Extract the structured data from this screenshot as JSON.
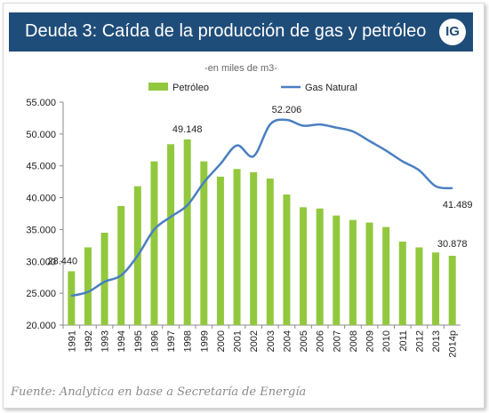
{
  "header": {
    "title": "Deuda 3: Caída de la producción de gas y petróleo",
    "logo": "IG"
  },
  "colors": {
    "header_bg": "#1f4d7a",
    "bars": "#92c83e",
    "line": "#4a7fc1"
  },
  "chart_data": {
    "type": "bar",
    "subtitle": "-en miles de m3-",
    "legend": [
      "Petróleo",
      "Gas Natural"
    ],
    "legend_position": "top",
    "categories": [
      "1991",
      "1992",
      "1993",
      "1994",
      "1995",
      "1996",
      "1997",
      "1998",
      "1999",
      "2000",
      "2001",
      "2002",
      "2003",
      "2004",
      "2005",
      "2006",
      "2007",
      "2008",
      "2009",
      "2010",
      "2011",
      "2012",
      "2013",
      "2014p"
    ],
    "y_ticks": [
      "20.000",
      "25.000",
      "30.000",
      "35.000",
      "40.000",
      "45.000",
      "50.000",
      "55.000"
    ],
    "ylim": [
      20000,
      55000
    ],
    "grid": false,
    "series": [
      {
        "name": "Petróleo",
        "type": "bar",
        "color": "#92c83e",
        "values": [
          28440,
          32200,
          34500,
          38700,
          41800,
          45700,
          48400,
          49148,
          45700,
          43300,
          44500,
          44000,
          43000,
          40500,
          38500,
          38300,
          37200,
          36500,
          36100,
          35400,
          33100,
          32200,
          31400,
          30878
        ]
      },
      {
        "name": "Gas Natural",
        "type": "line",
        "color": "#4a7fc1",
        "values": [
          24600,
          25200,
          26800,
          27800,
          30900,
          35000,
          37000,
          38800,
          42400,
          45300,
          48200,
          46500,
          51500,
          52206,
          51300,
          51500,
          51000,
          50400,
          48900,
          47400,
          45700,
          44300,
          41800,
          41489
        ]
      }
    ],
    "data_labels": [
      {
        "series": 0,
        "index": 0,
        "text": "28.440"
      },
      {
        "series": 0,
        "index": 7,
        "text": "49.148"
      },
      {
        "series": 1,
        "index": 13,
        "text": "52.206"
      },
      {
        "series": 1,
        "index": 23,
        "text": "41.489"
      },
      {
        "series": 0,
        "index": 23,
        "text": "30.878"
      }
    ]
  },
  "source": "Fuente: Analytica en base a Secretaría de Energía"
}
